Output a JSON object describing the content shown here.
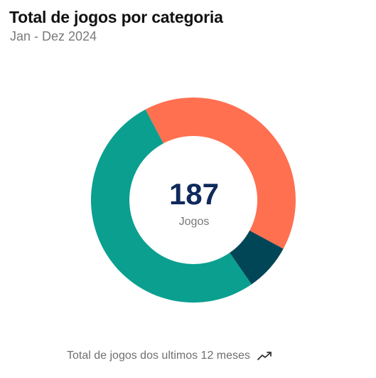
{
  "header": {
    "title": "Total de jogos por categoria",
    "subtitle": "Jan - Dez 2024"
  },
  "center": {
    "value": "187",
    "label": "Jogos"
  },
  "footer": {
    "text": "Total de jogos dos ultimos 12 meses",
    "icon": "trending-up-icon"
  },
  "chart_data": {
    "type": "pie",
    "title": "Total de jogos por categoria",
    "subtitle": "Jan - Dez 2024",
    "total": 187,
    "slices": [
      {
        "value": 76,
        "color": "#ff7050"
      },
      {
        "value": 14,
        "color": "#004657"
      },
      {
        "value": 97,
        "color": "#0b9f8f"
      }
    ]
  }
}
